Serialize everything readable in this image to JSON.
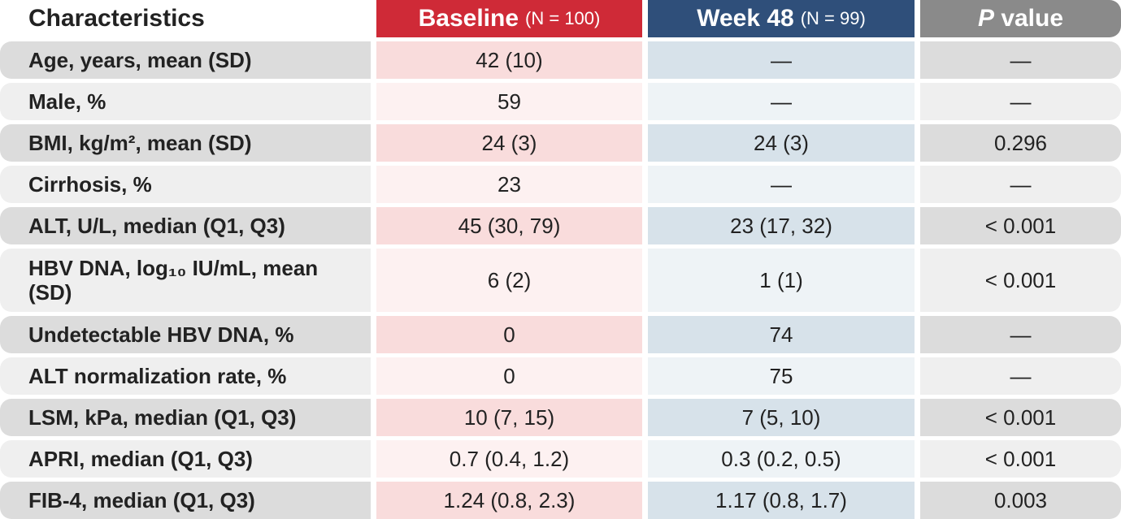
{
  "header": {
    "characteristics": "Characteristics",
    "baseline": {
      "name": "Baseline",
      "n": "(N = 100)"
    },
    "week48": {
      "name": "Week 48",
      "n": "(N = 99)"
    },
    "p_value": {
      "italic": "P",
      "text": "value"
    }
  },
  "table": {
    "rows": [
      [
        "Age, years, mean (SD)",
        "42 (10)",
        "—",
        "—"
      ],
      [
        "Male, %",
        "59",
        "—",
        "—"
      ],
      [
        "BMI, kg/m², mean (SD)",
        "24 (3)",
        "24 (3)",
        "0.296"
      ],
      [
        "Cirrhosis, %",
        "23",
        "—",
        "—"
      ],
      [
        "ALT, U/L, median (Q1, Q3)",
        "45 (30, 79)",
        "23 (17, 32)",
        "< 0.001"
      ],
      [
        "HBV DNA, log₁₀ IU/mL, mean (SD)",
        "6 (2)",
        "1 (1)",
        "< 0.001"
      ],
      [
        "Undetectable HBV DNA, %",
        "0",
        "74",
        "—"
      ],
      [
        "ALT normalization rate, %",
        "0",
        "75",
        "—"
      ],
      [
        "LSM, kPa, median (Q1, Q3)",
        "10 (7, 15)",
        "7 (5, 10)",
        "< 0.001"
      ],
      [
        "APRI, median (Q1, Q3)",
        "0.7 (0.4, 1.2)",
        "0.3 (0.2, 0.5)",
        "< 0.001"
      ],
      [
        "FIB-4, median (Q1, Q3)",
        "1.24 (0.8, 2.3)",
        "1.17 (0.8, 1.7)",
        "0.003"
      ]
    ]
  }
}
